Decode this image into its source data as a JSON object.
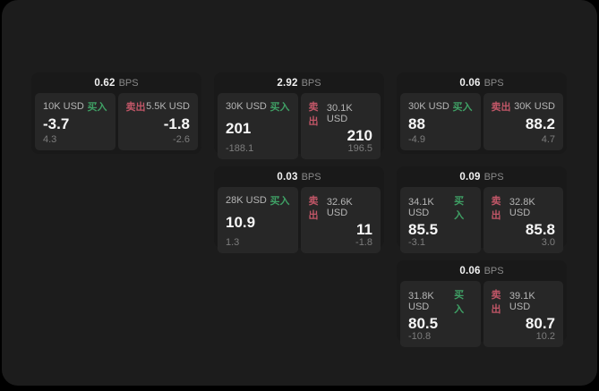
{
  "labels": {
    "buy": "买入",
    "sell": "卖出",
    "bps_unit": "BPS"
  },
  "colors": {
    "buy_accent": "#3fa065",
    "sell_accent": "#c05667",
    "surface": "#1c1c1c",
    "card": "#191919",
    "panel": "#272727"
  },
  "cards": [
    {
      "bps": "0.62",
      "buy": {
        "size": "10K USD",
        "price": "-3.7",
        "delta": "4.3"
      },
      "sell": {
        "size": "5.5K USD",
        "price": "-1.8",
        "delta": "-2.6"
      }
    },
    {
      "bps": "2.92",
      "buy": {
        "size": "30K USD",
        "price": "201",
        "delta": "-188.1"
      },
      "sell": {
        "size": "30.1K USD",
        "price": "210",
        "delta": "196.5"
      }
    },
    {
      "bps": "0.06",
      "buy": {
        "size": "30K USD",
        "price": "88",
        "delta": "-4.9"
      },
      "sell": {
        "size": "30K USD",
        "price": "88.2",
        "delta": "4.7"
      }
    },
    {
      "bps": "0.03",
      "buy": {
        "size": "28K USD",
        "price": "10.9",
        "delta": "1.3"
      },
      "sell": {
        "size": "32.6K USD",
        "price": "11",
        "delta": "-1.8"
      }
    },
    {
      "bps": "0.09",
      "buy": {
        "size": "34.1K USD",
        "price": "85.5",
        "delta": "-3.1"
      },
      "sell": {
        "size": "32.8K USD",
        "price": "85.8",
        "delta": "3.0"
      }
    },
    {
      "bps": "0.06",
      "buy": {
        "size": "31.8K USD",
        "price": "80.5",
        "delta": "-10.8"
      },
      "sell": {
        "size": "39.1K USD",
        "price": "80.7",
        "delta": "10.2"
      }
    }
  ]
}
